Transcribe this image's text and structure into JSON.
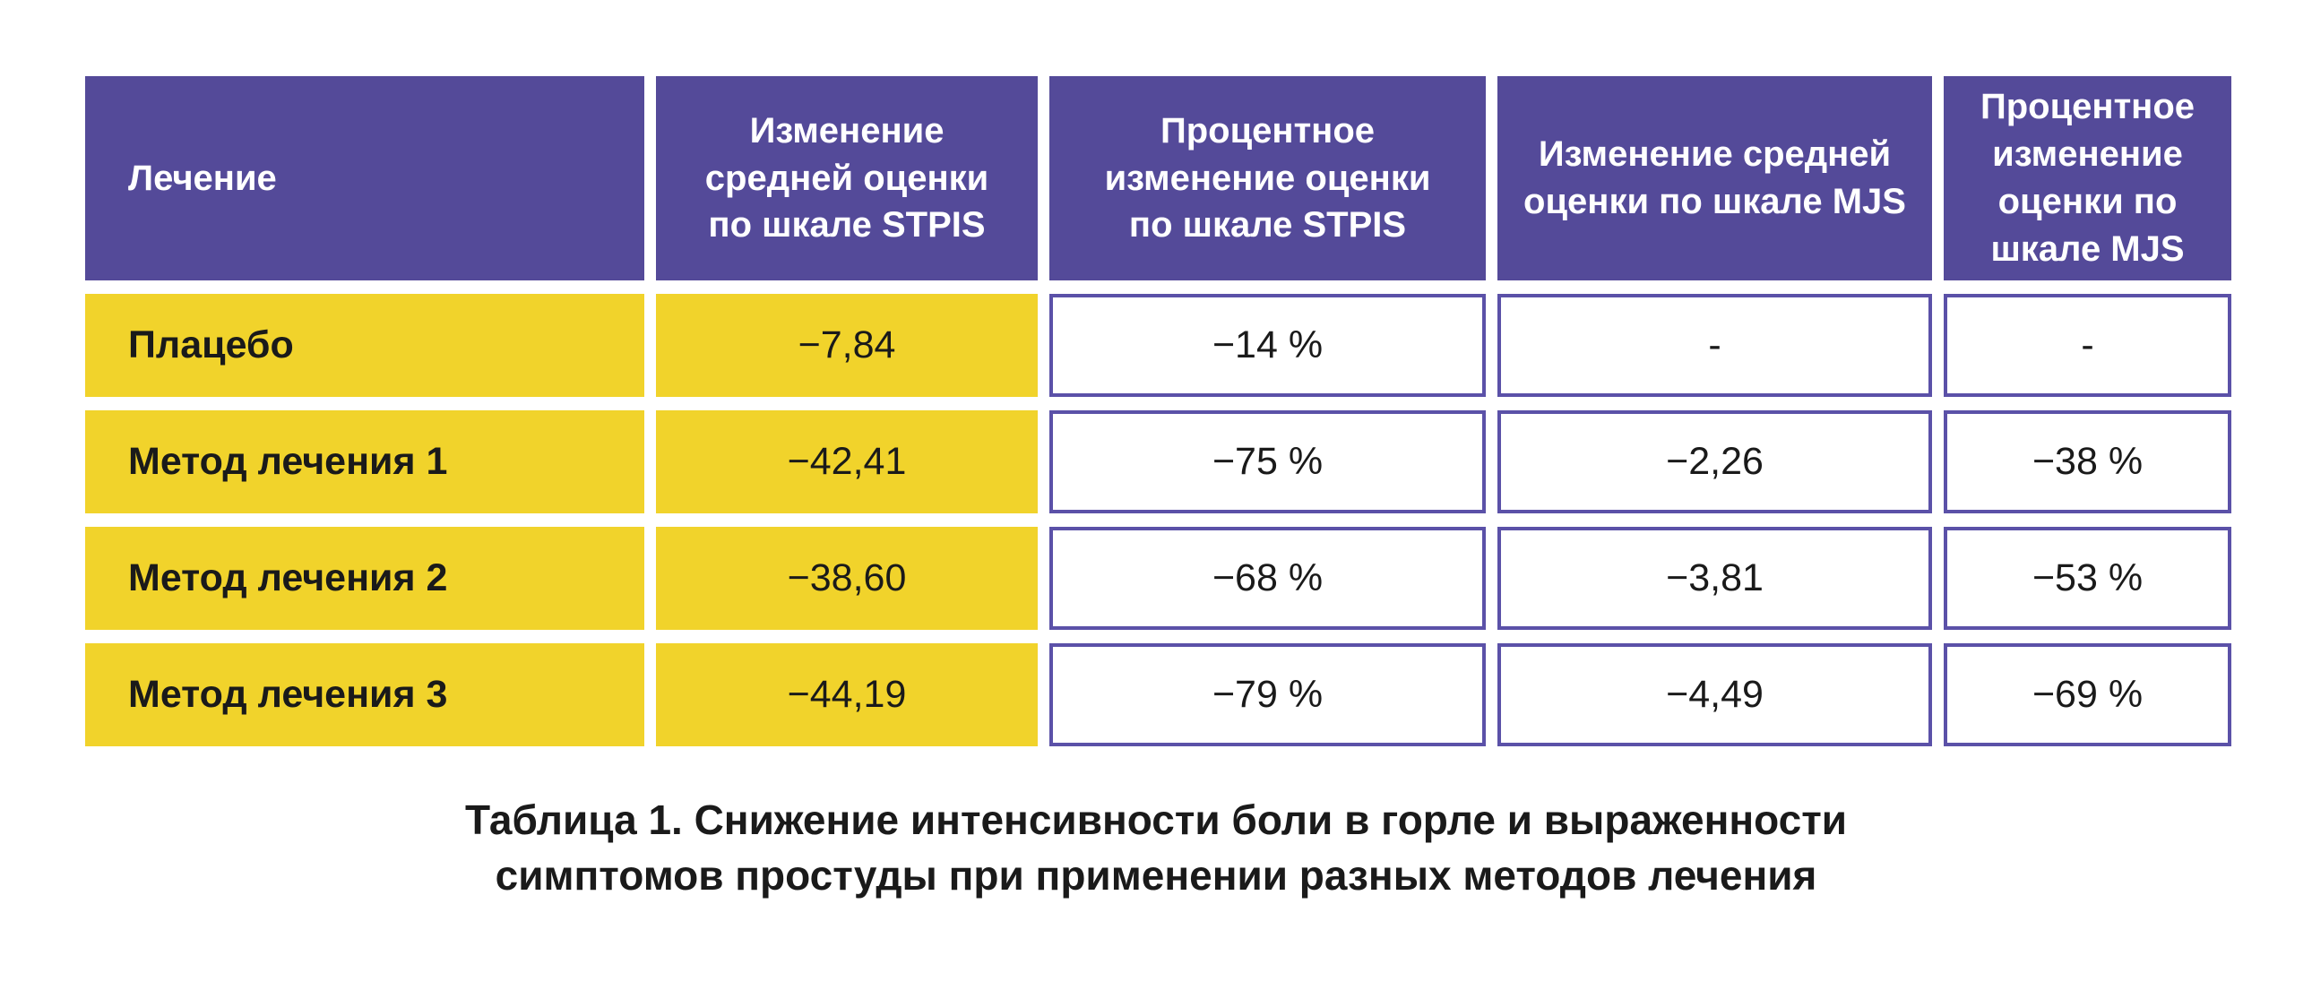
{
  "page": {
    "background": "#FFFFFF"
  },
  "colors": {
    "header_bg": "#544A99",
    "header_text": "#FFFFFF",
    "yellow_cell_bg": "#F1D32B",
    "white_cell_border": "#5B51A8",
    "body_text": "#1A1A1A"
  },
  "chart_data": {
    "type": "table",
    "title": "Таблица 1. Снижение интенсивности боли в горле и выраженности симптомов простуды при применении разных методов лечения",
    "columns": [
      "Лечение",
      "Изменение средней оценки по шкале STPIS",
      "Процентное изменение оценки по шкале STPIS",
      "Изменение средней оценки по шкале MJS",
      "Процентное изменение оценки по шкале MJS"
    ],
    "rows": [
      [
        "Плацебо",
        "−7,84",
        "−14 %",
        "-",
        "-"
      ],
      [
        "Метод лечения 1",
        "−42,41",
        "−75 %",
        "−2,26",
        "−38 %"
      ],
      [
        "Метод лечения 2",
        "−38,60",
        "−68 %",
        "−3,81",
        "−53 %"
      ],
      [
        "Метод лечения 3",
        "−44,19",
        "−79 %",
        "−4,49",
        "−69 %"
      ]
    ]
  },
  "caption": {
    "line1": "Таблица 1. Снижение интенсивности боли в горле и выраженности",
    "line2": "симптомов простуды при применении разных методов лечения"
  }
}
